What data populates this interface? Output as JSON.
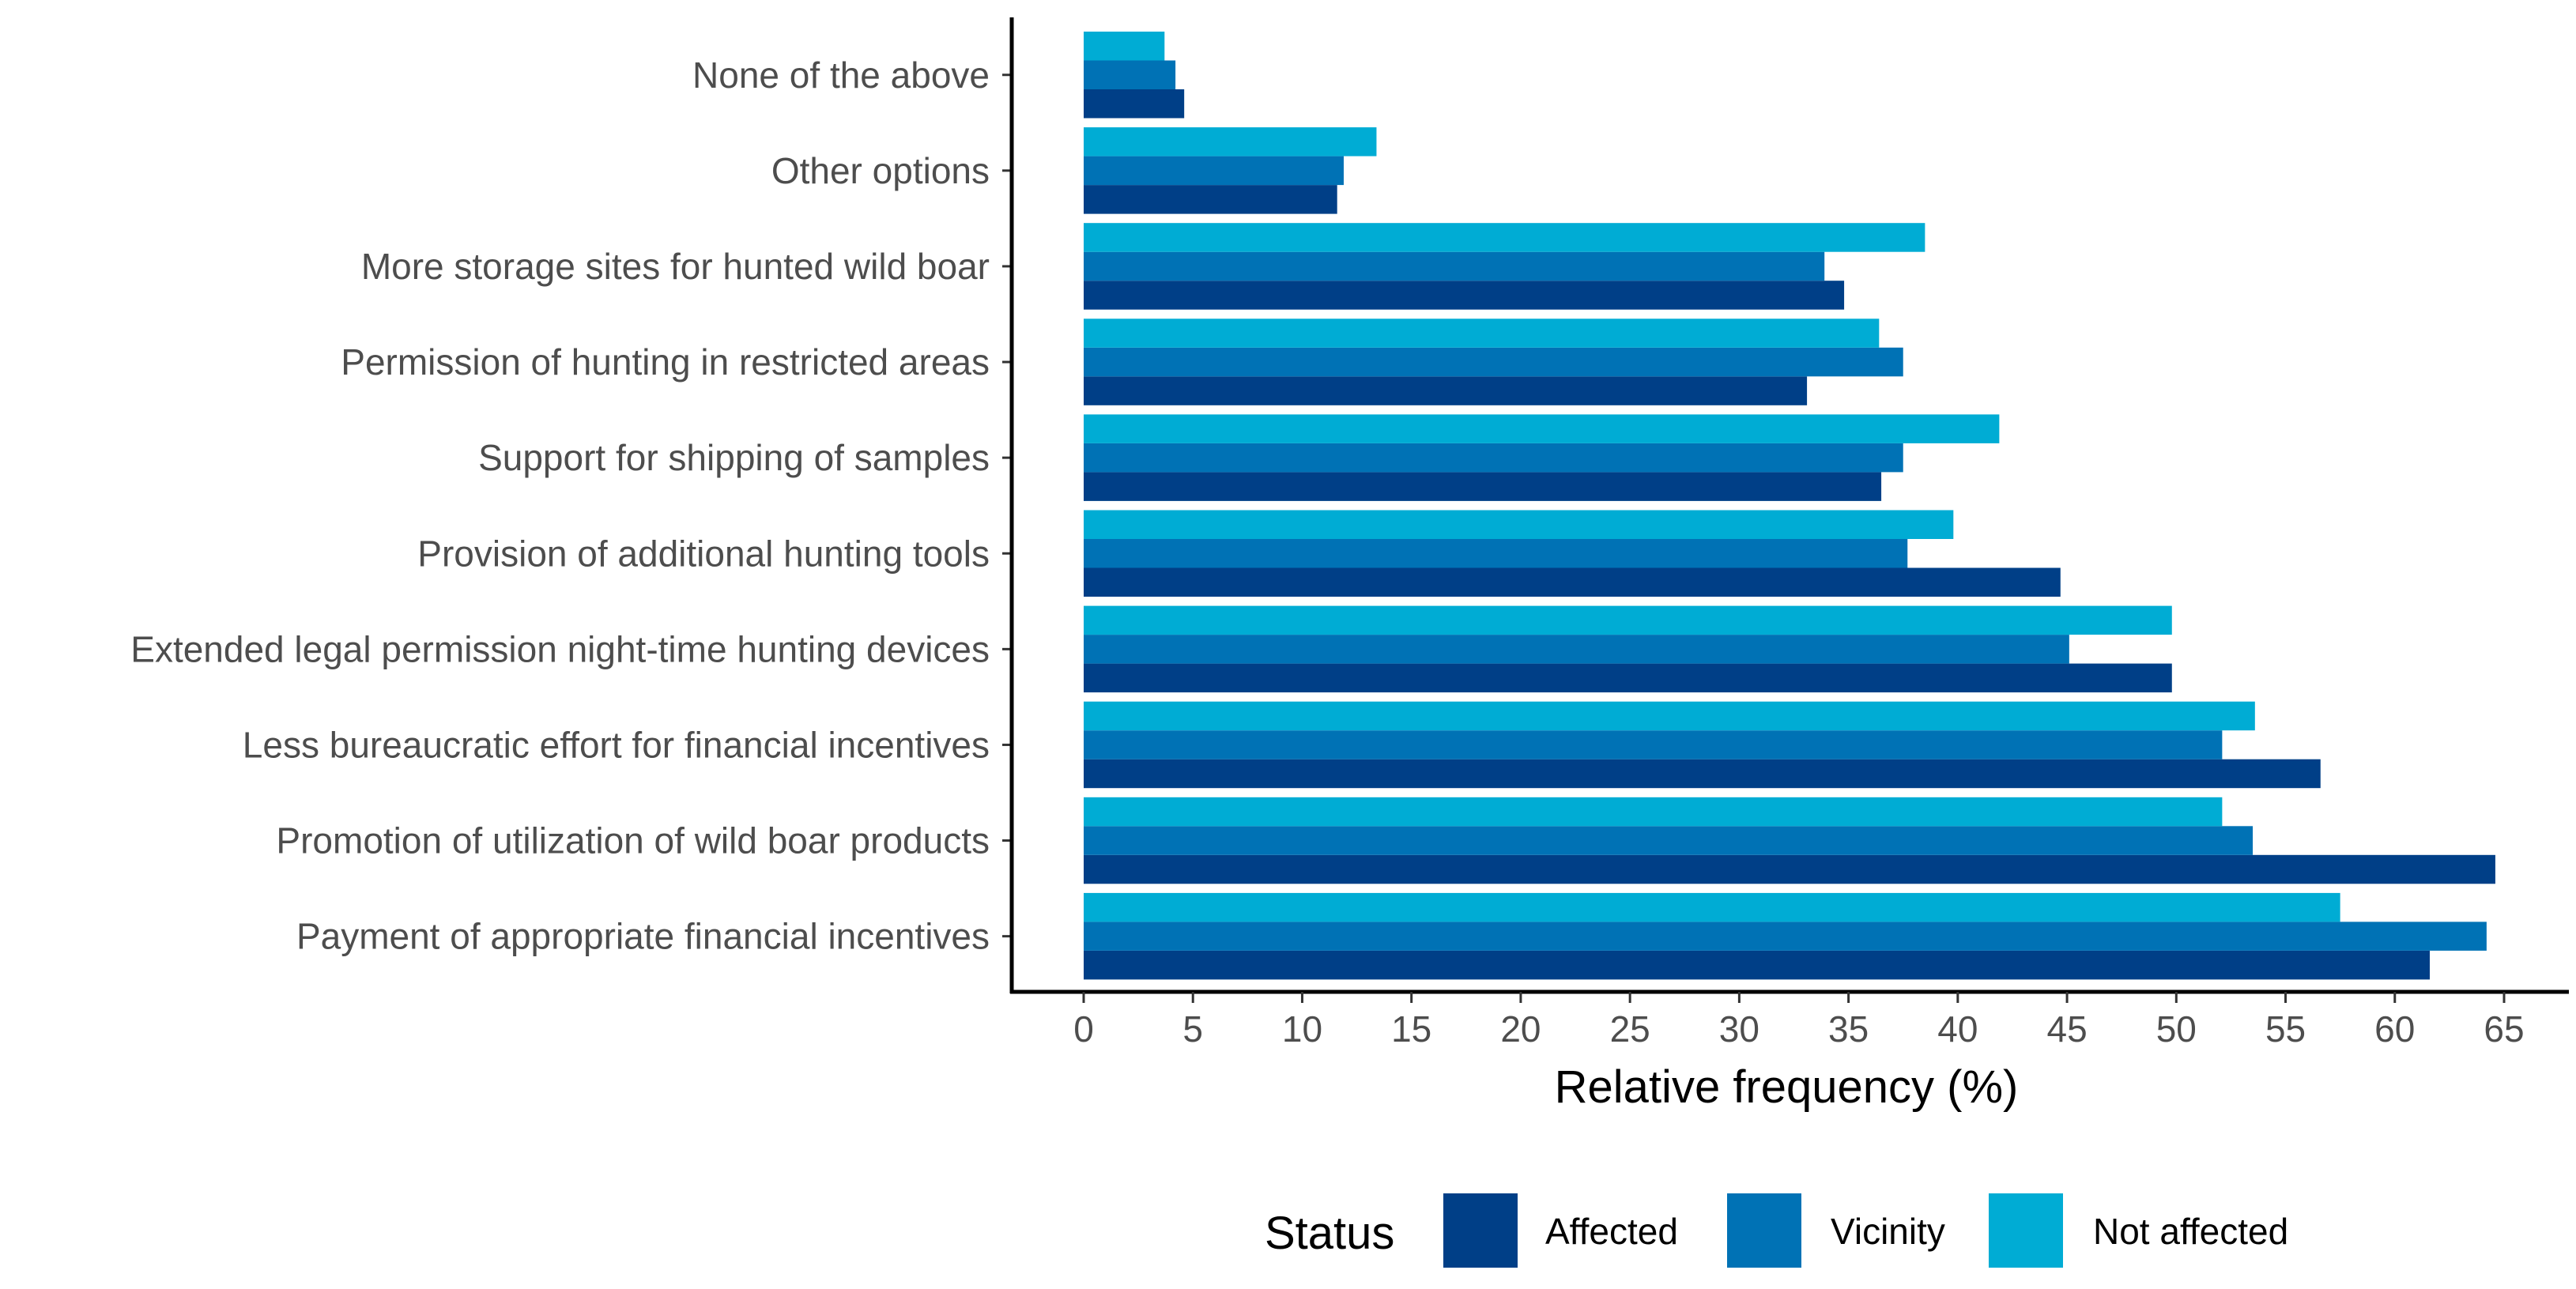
{
  "chart_data": {
    "type": "bar",
    "orientation": "horizontal",
    "title": "",
    "xlabel": "Relative frequency (%)",
    "ylabel": "",
    "xlim": [
      0,
      65
    ],
    "x_ticks": [
      "0",
      "5",
      "10",
      "15",
      "20",
      "25",
      "30",
      "35",
      "40",
      "45",
      "50",
      "55",
      "60",
      "65"
    ],
    "grid": false,
    "legend_position": "bottom",
    "legend_title": "Status",
    "categories": [
      "Payment of appropriate financial incentives",
      "Promotion of utilization of wild boar products",
      "Less bureaucratic effort for financial incentives",
      "Extended legal permission night-time hunting devices",
      "Provision of additional hunting tools",
      "Support for shipping of samples",
      "Permission of hunting in restricted areas",
      "More storage sites for hunted wild boar",
      "Other options",
      "None of the above"
    ],
    "series": [
      {
        "name": "Affected",
        "color": "#003f87",
        "values": [
          61.6,
          64.6,
          56.6,
          49.8,
          44.7,
          36.5,
          33.1,
          34.8,
          11.6,
          4.6
        ]
      },
      {
        "name": "Vicinity",
        "color": "#0072b5",
        "values": [
          64.2,
          53.5,
          52.1,
          45.1,
          37.7,
          37.5,
          37.5,
          33.9,
          11.9,
          4.2
        ]
      },
      {
        "name": "Not affected",
        "color": "#00acd4",
        "values": [
          57.5,
          52.1,
          53.6,
          49.8,
          39.8,
          41.9,
          36.4,
          38.5,
          13.4,
          3.7
        ]
      }
    ]
  }
}
